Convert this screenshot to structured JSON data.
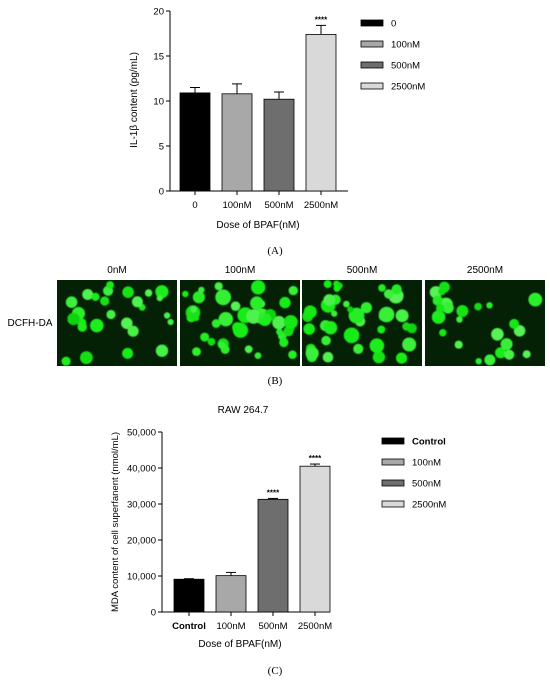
{
  "chart_data": [
    {
      "type": "bar",
      "panel_label": "(A)",
      "xlabel": "Dose of BPAF(nM)",
      "ylabel": "IL-1β content (pg/mL)",
      "ylim": [
        0,
        20
      ],
      "yticks": [
        "0",
        "5",
        "10",
        "15",
        "20"
      ],
      "categories": [
        "0",
        "100nM",
        "500nM",
        "2500nM"
      ],
      "values": [
        10.9,
        10.8,
        10.2,
        17.4
      ],
      "errors": [
        0.6,
        1.1,
        0.8,
        1.0
      ],
      "significance": [
        "",
        "",
        "",
        "****"
      ],
      "colors": [
        "#000000",
        "#a8a8a8",
        "#6e6e6e",
        "#d9d9d9"
      ],
      "legend": [
        "0",
        "100nM",
        "500nM",
        "2500nM"
      ],
      "legend_position": "right"
    },
    {
      "type": "image_panel",
      "panel_label": "(B)",
      "row_label": "DCFH-DA",
      "columns": [
        "0nM",
        "100nM",
        "500nM",
        "2500nM"
      ]
    },
    {
      "type": "bar",
      "panel_label": "(C)",
      "title": "RAW 264.7",
      "xlabel": "Dose of BPAF(nM)",
      "ylabel": "MDA content of cell superfanent (nmol/mL)",
      "ylim": [
        0,
        50000
      ],
      "yticks": [
        "0",
        "10,000",
        "20,000",
        "30,000",
        "40,000",
        "50,000"
      ],
      "categories": [
        "Control",
        "100nM",
        "500nM",
        "2500nM"
      ],
      "values": [
        9100,
        10100,
        31300,
        40500
      ],
      "errors": [
        150,
        900,
        250,
        600
      ],
      "significance": [
        "",
        "",
        "****",
        "****"
      ],
      "colors": [
        "#000000",
        "#a8a8a8",
        "#6e6e6e",
        "#d9d9d9"
      ],
      "legend": [
        "Control",
        "100nM",
        "500nM",
        "2500nM"
      ],
      "legend_position": "right"
    }
  ]
}
